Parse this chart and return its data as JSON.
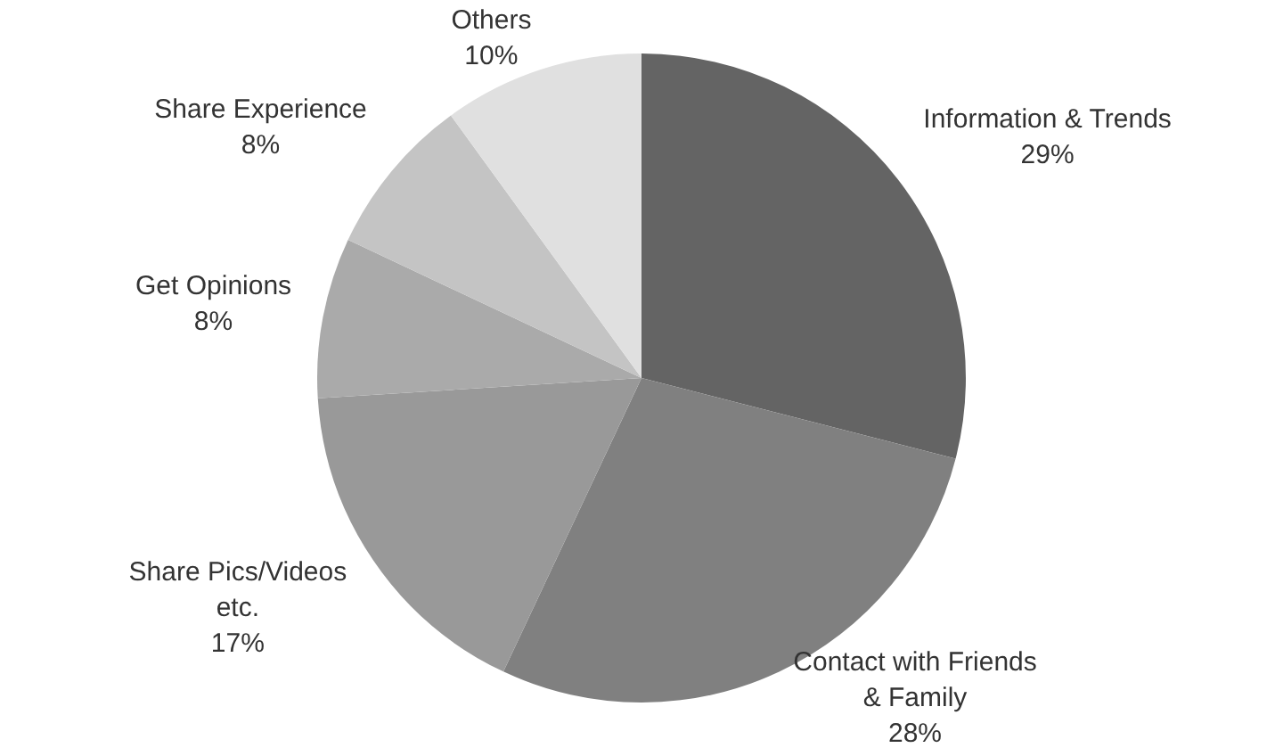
{
  "chart_data": {
    "type": "pie",
    "categories": [
      "Information & Trends",
      "Contact with Friends & Family",
      "Share Pics/Videos etc.",
      "Get Opinions",
      "Share Experience",
      "Others"
    ],
    "values": [
      29,
      28,
      17,
      8,
      8,
      10
    ],
    "value_labels": [
      "29%",
      "28%",
      "17%",
      "8%",
      "8%",
      "10%"
    ],
    "colors": [
      "#646464",
      "#808080",
      "#999999",
      "#aaaaaa",
      "#c4c4c4",
      "#e0e0e0"
    ],
    "legend": false
  }
}
